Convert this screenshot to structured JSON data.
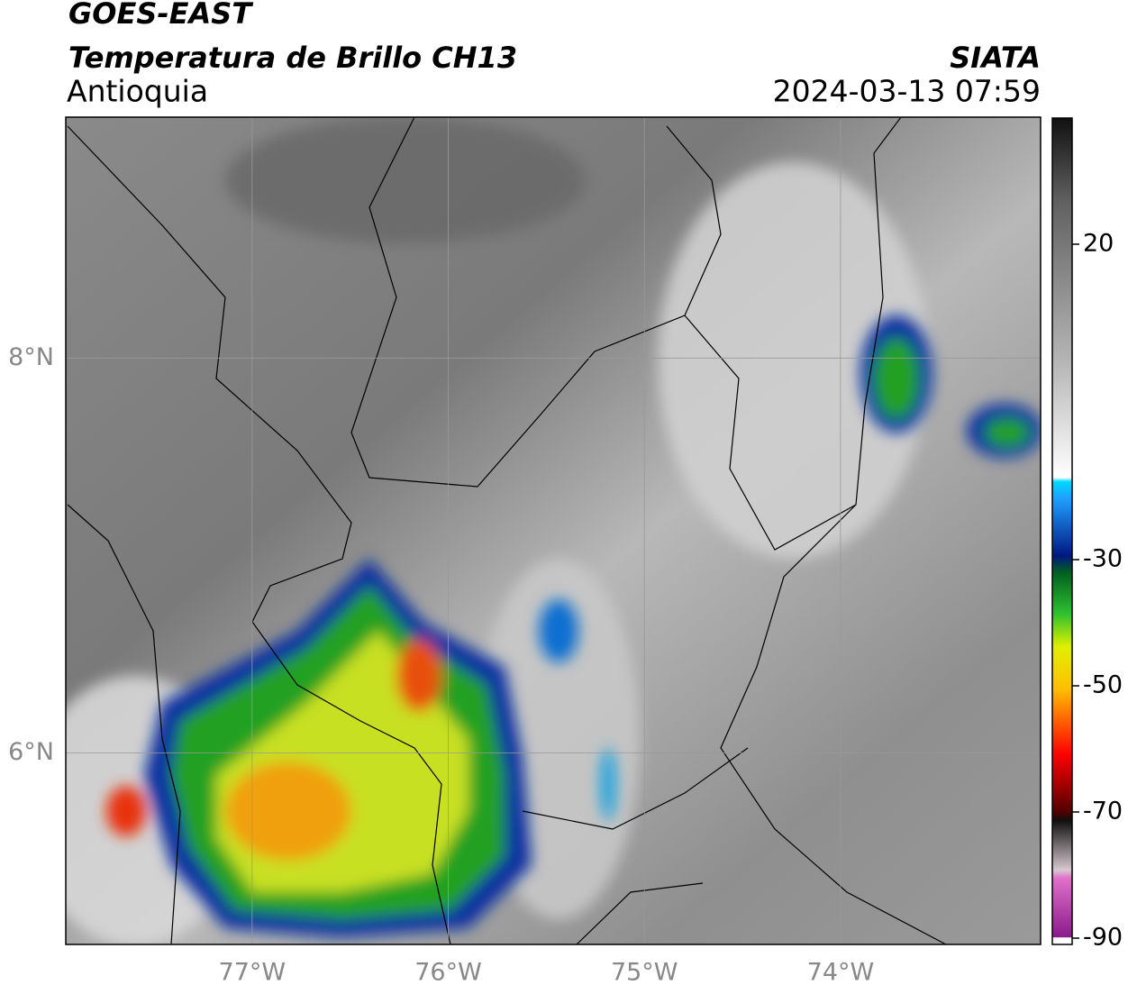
{
  "header": {
    "title": "GOES-EAST",
    "subtitle": "Temperatura de Brillo CH13",
    "region": "Antioquia",
    "source": "SIATA",
    "datetime": "2024-03-13 07:59"
  },
  "map": {
    "lonlim": [
      -77.95,
      -72.98
    ],
    "latlim": [
      5.03,
      9.22
    ],
    "lonticks": [
      {
        "value": -77,
        "label": "77°W"
      },
      {
        "value": -76,
        "label": "76°W"
      },
      {
        "value": -75,
        "label": "75°W"
      },
      {
        "value": -74,
        "label": "74°W"
      }
    ],
    "latticks": [
      {
        "value": 8,
        "label": "8°N"
      },
      {
        "value": 6,
        "label": "6°N"
      }
    ],
    "grid": true
  },
  "colorbar": {
    "lim": [
      -91,
      40
    ],
    "ticks": [
      20,
      -30,
      -50,
      -70,
      -90
    ]
  }
}
